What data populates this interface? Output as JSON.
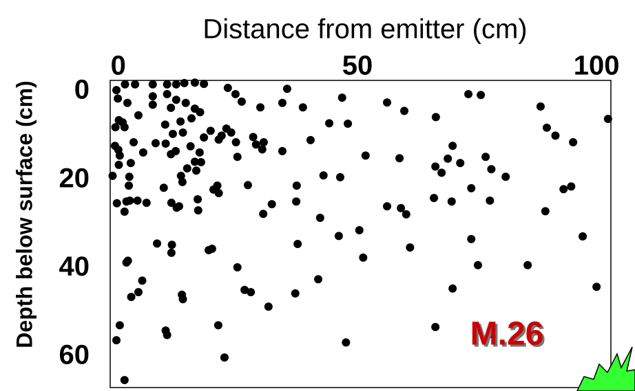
{
  "chart_data": {
    "type": "scatter",
    "title": "Distance from emitter (cm)",
    "y_label": "Depth below surface (cm)",
    "annotation": "M.26",
    "color": "#000000",
    "xlim": [
      -1.7,
      103
    ],
    "xticks": [
      0,
      50,
      100
    ],
    "ylim": [
      67,
      -2.5
    ],
    "yticks": [
      0,
      20,
      40,
      60
    ],
    "x": [
      -0.4,
      1.4,
      3.5,
      7.2,
      10.2,
      12.1,
      13.8,
      16.0,
      17.9,
      22.9,
      24.5,
      25.8,
      29.7,
      34.3,
      35.3,
      38.6,
      46.8,
      56.2,
      59.8,
      66.4,
      73.2,
      75.8,
      88.3,
      102.4,
      89.6,
      95.1,
      91.4,
      -0.1,
      1.9,
      7.2,
      7.2,
      4.2,
      10.2,
      12.1,
      14.1,
      16.0,
      17.1,
      15.3,
      13.0,
      13.5,
      9.8,
      11.0,
      0.1,
      -0.6,
      1.3,
      0.9,
      3.2,
      -0.7,
      0.0,
      0.3,
      2.6,
      0.1,
      2.3,
      2.2,
      -1.2,
      5.2,
      7.8,
      9.9,
      11.4,
      11.0,
      12.0,
      15.1,
      17.0,
      16.0,
      14.4,
      13.1,
      13.4,
      9.5,
      16.3,
      17.3,
      19.3,
      17.9,
      21.6,
      22.6,
      21.0,
      24.6,
      24.9,
      23.6,
      28.2,
      28.8,
      30.4,
      30.1,
      34.3,
      40.2,
      44.1,
      48.0,
      51.7,
      58.8,
      66.3,
      68.9,
      69.9,
      71.5,
      67.6,
      76.8,
      78.0,
      81.0,
      73.8,
      69.7,
      77.7,
      66.0,
      56.2,
      59.1,
      60.2,
      89.3,
      94.7,
      93.1,
      97.1,
      100.0,
      -0.3,
      1.7,
      1.3,
      2.4,
      4.0,
      5.9,
      11.1,
      12.2,
      12.7,
      16.6,
      16.7,
      20.7,
      19.9,
      21.0,
      27.1,
      32.1,
      30.3,
      37.2,
      37.3,
      42.2,
      46.1,
      50.4,
      51.2,
      61.0,
      73.8,
      75.2,
      85.6,
      69.9,
      42.9,
      46.4,
      11.2,
      11.1,
      8.1,
      18.9,
      19.6,
      24.9,
      37.5,
      26.4,
      27.7,
      31.4,
      37.0,
      41.8,
      1.7,
      2.0,
      5.0,
      4.2,
      2.7,
      13.3,
      13.5,
      0.3,
      -0.4,
      9.9,
      10.2,
      20.9,
      22.2,
      47.6,
      66.3,
      1.3,
      78.1
    ],
    "values": [
      -0.3,
      -1.6,
      -1.6,
      -1.6,
      -1.6,
      -1.6,
      -1.9,
      -2.0,
      -1.7,
      -0.8,
      0.6,
      2.3,
      3.6,
      2.6,
      -0.6,
      3.6,
      1.4,
      2.5,
      4.4,
      5.8,
      0.6,
      0.8,
      3.4,
      6.2,
      8.2,
      11.5,
      10.0,
      1.6,
      2.6,
      1.1,
      3.0,
      5.4,
      0.6,
      1.9,
      2.6,
      3.9,
      4.7,
      6.1,
      6.8,
      9.3,
      7.5,
      3.7,
      6.5,
      8.1,
      8.1,
      7.0,
      11.5,
      12.3,
      13.2,
      14.5,
      16.2,
      16.6,
      19.3,
      21.3,
      19.1,
      13.8,
      11.7,
      11.8,
      9.6,
      14.2,
      13.5,
      12.4,
      13.8,
      15.9,
      17.4,
      19.1,
      20.5,
      21.8,
      17.9,
      16.0,
      8.9,
      10.4,
      10.0,
      8.4,
      10.9,
      11.5,
      14.8,
      9.3,
      10.3,
      12.0,
      11.5,
      13.1,
      13.5,
      11.0,
      7.2,
      7.3,
      14.5,
      15.1,
      17.0,
      15.2,
      12.3,
      16.2,
      18.4,
      14.8,
      17.6,
      19.3,
      21.9,
      24.9,
      24.7,
      24.1,
      26.0,
      26.4,
      27.8,
      27.1,
      21.5,
      22.1,
      32.8,
      44.2,
      25.3,
      24.9,
      27.2,
      24.7,
      24.7,
      25.2,
      25.2,
      26.3,
      26.0,
      24.4,
      26.9,
      21.3,
      22.2,
      23.0,
      21.2,
      25.5,
      27.7,
      24.9,
      21.3,
      28.6,
      32.7,
      31.4,
      37.6,
      35.3,
      33.4,
      39.3,
      39.3,
      44.6,
      19.0,
      19.4,
      34.7,
      36.5,
      34.4,
      35.9,
      35.6,
      39.8,
      34.5,
      44.9,
      45.4,
      48.7,
      45.7,
      42.5,
      38.7,
      38.3,
      42.8,
      45.4,
      46.5,
      46.0,
      47.0,
      52.9,
      56.3,
      54.1,
      55.1,
      52.9,
      60.2,
      56.8,
      53.3,
      65.3,
      54.9
    ]
  }
}
